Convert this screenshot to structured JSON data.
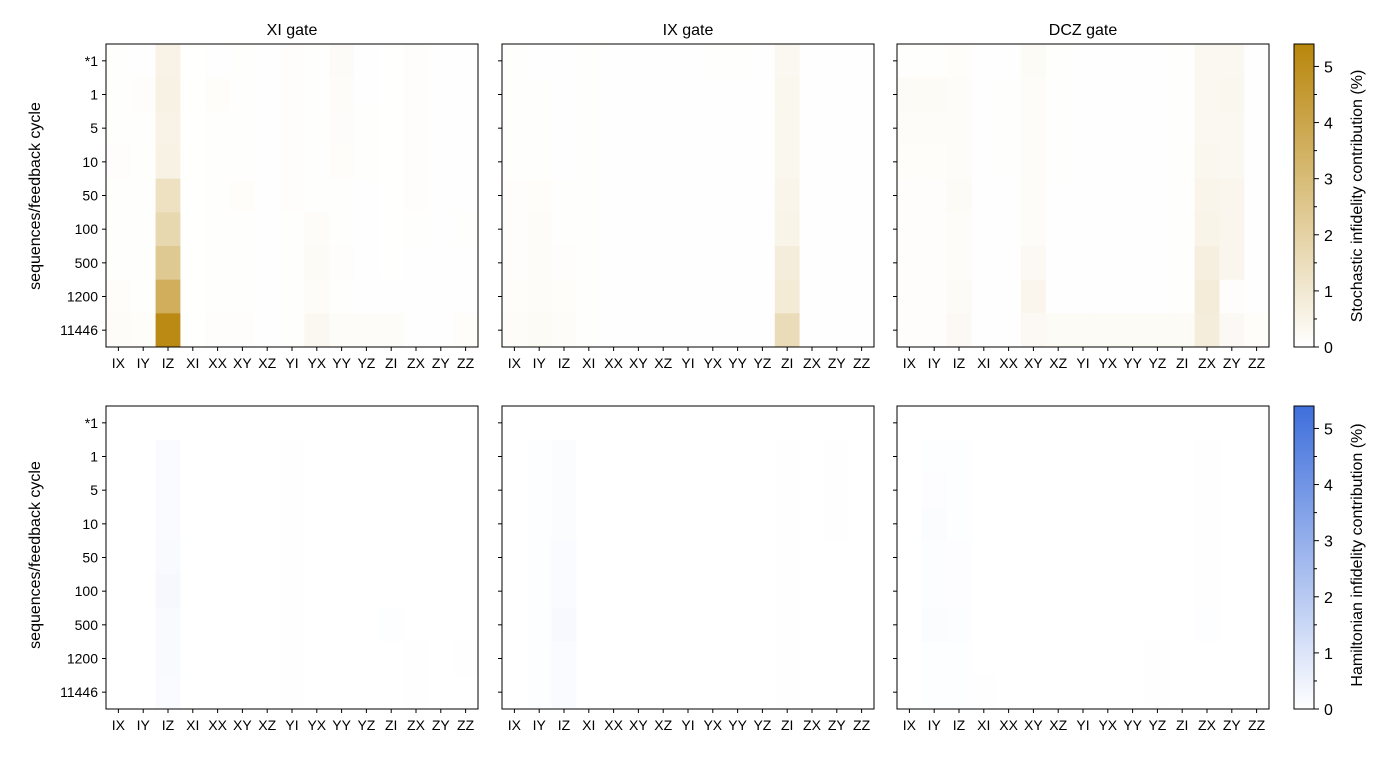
{
  "figure": {
    "ylabel": "sequences/feedback cycle",
    "cbar_top_label": "Stochastic infidelity contribution (%)",
    "cbar_bottom_label": "Hamiltonian infidelity contribution (%)",
    "cbar_ticks": [
      "0",
      "1",
      "2",
      "3",
      "4",
      "5"
    ],
    "colors": {
      "stochastic_max": "#b8860b",
      "hamiltonian_max": "#3f6fdc",
      "background": "#ffffff"
    }
  },
  "chart_data": {
    "type": "heatmap",
    "rows": [
      "*1",
      "1",
      "5",
      "10",
      "50",
      "100",
      "500",
      "1200",
      "11446"
    ],
    "columns": [
      "IX",
      "IY",
      "IZ",
      "XI",
      "XX",
      "XY",
      "XZ",
      "YI",
      "YX",
      "YY",
      "YZ",
      "ZI",
      "ZX",
      "ZY",
      "ZZ"
    ],
    "color_range": [
      0,
      5.4
    ],
    "panels": [
      {
        "title": "XI gate",
        "kind": "stochastic",
        "values": [
          [
            0.05,
            0.03,
            0.55,
            0.02,
            0.03,
            0.04,
            0.03,
            0.07,
            0.04,
            0.18,
            0.03,
            0.02,
            0.07,
            0.03,
            0.03
          ],
          [
            0.05,
            0.08,
            0.6,
            0.02,
            0.1,
            0.04,
            0.03,
            0.07,
            0.04,
            0.15,
            0.03,
            0.02,
            0.07,
            0.03,
            0.03
          ],
          [
            0.05,
            0.04,
            0.55,
            0.02,
            0.04,
            0.04,
            0.03,
            0.07,
            0.04,
            0.12,
            0.05,
            0.02,
            0.07,
            0.03,
            0.03
          ],
          [
            0.07,
            0.04,
            0.6,
            0.02,
            0.04,
            0.04,
            0.03,
            0.07,
            0.04,
            0.1,
            0.05,
            0.02,
            0.07,
            0.03,
            0.03
          ],
          [
            0.05,
            0.04,
            1.35,
            0.02,
            0.04,
            0.1,
            0.03,
            0.07,
            0.05,
            0.05,
            0.03,
            0.02,
            0.07,
            0.03,
            0.03
          ],
          [
            0.05,
            0.04,
            1.75,
            0.02,
            0.04,
            0.04,
            0.03,
            0.05,
            0.15,
            0.05,
            0.03,
            0.02,
            0.05,
            0.03,
            0.05
          ],
          [
            0.05,
            0.04,
            2.4,
            0.02,
            0.04,
            0.04,
            0.03,
            0.05,
            0.2,
            0.07,
            0.03,
            0.02,
            0.03,
            0.03,
            0.03
          ],
          [
            0.1,
            0.04,
            3.6,
            0.02,
            0.04,
            0.04,
            0.03,
            0.05,
            0.15,
            0.05,
            0.03,
            0.03,
            0.03,
            0.03,
            0.03
          ],
          [
            0.15,
            0.1,
            5.2,
            0.02,
            0.08,
            0.08,
            0.03,
            0.05,
            0.3,
            0.15,
            0.15,
            0.15,
            0.03,
            0.03,
            0.1
          ]
        ]
      },
      {
        "title": "IX gate",
        "kind": "stochastic",
        "values": [
          [
            0.04,
            0.03,
            0.03,
            0.05,
            0.03,
            0.03,
            0.03,
            0.03,
            0.05,
            0.04,
            0.03,
            0.3,
            0.03,
            0.03,
            0.03
          ],
          [
            0.04,
            0.04,
            0.03,
            0.04,
            0.03,
            0.03,
            0.03,
            0.03,
            0.03,
            0.03,
            0.03,
            0.35,
            0.03,
            0.03,
            0.03
          ],
          [
            0.04,
            0.04,
            0.03,
            0.04,
            0.03,
            0.03,
            0.03,
            0.03,
            0.03,
            0.03,
            0.03,
            0.35,
            0.03,
            0.03,
            0.03
          ],
          [
            0.04,
            0.04,
            0.03,
            0.04,
            0.03,
            0.03,
            0.03,
            0.03,
            0.03,
            0.03,
            0.03,
            0.35,
            0.03,
            0.03,
            0.03
          ],
          [
            0.08,
            0.1,
            0.04,
            0.04,
            0.03,
            0.03,
            0.03,
            0.03,
            0.03,
            0.03,
            0.03,
            0.45,
            0.03,
            0.03,
            0.03
          ],
          [
            0.08,
            0.15,
            0.04,
            0.04,
            0.03,
            0.03,
            0.03,
            0.03,
            0.03,
            0.03,
            0.03,
            0.5,
            0.03,
            0.03,
            0.03
          ],
          [
            0.08,
            0.15,
            0.08,
            0.04,
            0.03,
            0.03,
            0.03,
            0.03,
            0.03,
            0.03,
            0.03,
            0.8,
            0.03,
            0.03,
            0.03
          ],
          [
            0.1,
            0.15,
            0.1,
            0.04,
            0.03,
            0.03,
            0.03,
            0.03,
            0.03,
            0.03,
            0.03,
            0.9,
            0.03,
            0.03,
            0.03
          ],
          [
            0.15,
            0.2,
            0.15,
            0.04,
            0.03,
            0.03,
            0.03,
            0.03,
            0.03,
            0.03,
            0.03,
            1.55,
            0.03,
            0.03,
            0.03
          ]
        ]
      },
      {
        "title": "DCZ gate",
        "kind": "stochastic",
        "values": [
          [
            0.05,
            0.05,
            0.1,
            0.03,
            0.03,
            0.2,
            0.05,
            0.03,
            0.03,
            0.03,
            0.03,
            0.05,
            0.3,
            0.3,
            0.03
          ],
          [
            0.2,
            0.2,
            0.15,
            0.03,
            0.05,
            0.15,
            0.05,
            0.03,
            0.03,
            0.03,
            0.03,
            0.05,
            0.3,
            0.35,
            0.03
          ],
          [
            0.15,
            0.15,
            0.15,
            0.03,
            0.05,
            0.15,
            0.05,
            0.03,
            0.03,
            0.03,
            0.03,
            0.05,
            0.3,
            0.3,
            0.03
          ],
          [
            0.1,
            0.1,
            0.15,
            0.03,
            0.05,
            0.15,
            0.05,
            0.03,
            0.03,
            0.03,
            0.03,
            0.05,
            0.35,
            0.3,
            0.03
          ],
          [
            0.08,
            0.08,
            0.2,
            0.03,
            0.03,
            0.15,
            0.03,
            0.03,
            0.03,
            0.03,
            0.03,
            0.05,
            0.45,
            0.4,
            0.03
          ],
          [
            0.08,
            0.08,
            0.15,
            0.03,
            0.03,
            0.15,
            0.03,
            0.03,
            0.03,
            0.03,
            0.03,
            0.05,
            0.5,
            0.4,
            0.03
          ],
          [
            0.08,
            0.08,
            0.15,
            0.03,
            0.03,
            0.25,
            0.03,
            0.03,
            0.03,
            0.03,
            0.03,
            0.05,
            0.7,
            0.4,
            0.03
          ],
          [
            0.08,
            0.08,
            0.2,
            0.03,
            0.03,
            0.4,
            0.03,
            0.03,
            0.03,
            0.03,
            0.03,
            0.05,
            0.85,
            0.08,
            0.03
          ],
          [
            0.08,
            0.08,
            0.25,
            0.03,
            0.03,
            0.25,
            0.2,
            0.2,
            0.2,
            0.2,
            0.2,
            0.2,
            0.8,
            0.25,
            0.1
          ]
        ]
      },
      {
        "title": "",
        "kind": "hamiltonian",
        "values": [
          [
            0.0,
            0.0,
            0.0,
            0.0,
            0.0,
            0.0,
            0.0,
            0.0,
            0.0,
            0.0,
            0.0,
            0.0,
            0.0,
            0.0,
            0.0
          ],
          [
            0.0,
            0.0,
            0.15,
            0.0,
            0.0,
            0.0,
            0.0,
            0.03,
            0.0,
            0.0,
            0.0,
            0.0,
            0.0,
            0.0,
            0.0
          ],
          [
            0.0,
            0.0,
            0.15,
            0.0,
            0.0,
            0.0,
            0.0,
            0.03,
            0.0,
            0.0,
            0.0,
            0.0,
            0.0,
            0.0,
            0.0
          ],
          [
            0.0,
            0.0,
            0.15,
            0.0,
            0.0,
            0.0,
            0.0,
            0.02,
            0.0,
            0.0,
            0.0,
            0.0,
            0.0,
            0.0,
            0.0
          ],
          [
            0.0,
            0.0,
            0.2,
            0.0,
            0.0,
            0.0,
            0.0,
            0.02,
            0.0,
            0.0,
            0.0,
            0.0,
            0.0,
            0.0,
            0.0
          ],
          [
            0.0,
            0.0,
            0.25,
            0.0,
            0.0,
            0.0,
            0.0,
            0.04,
            0.0,
            0.0,
            0.0,
            0.0,
            0.0,
            0.0,
            0.0
          ],
          [
            0.0,
            0.0,
            0.2,
            0.0,
            0.0,
            0.0,
            0.0,
            0.02,
            0.0,
            0.0,
            0.0,
            0.05,
            0.0,
            0.0,
            0.0
          ],
          [
            0.0,
            0.0,
            0.18,
            0.0,
            0.0,
            0.0,
            0.0,
            0.02,
            0.0,
            0.0,
            0.0,
            0.0,
            0.03,
            0.0,
            0.02
          ],
          [
            0.0,
            0.0,
            0.15,
            0.0,
            0.0,
            0.0,
            0.0,
            0.02,
            0.0,
            0.0,
            0.0,
            0.0,
            0.03,
            0.0,
            0.0
          ]
        ]
      },
      {
        "title": "",
        "kind": "hamiltonian",
        "values": [
          [
            0.0,
            0.0,
            0.0,
            0.0,
            0.0,
            0.0,
            0.0,
            0.0,
            0.0,
            0.0,
            0.0,
            0.0,
            0.0,
            0.0,
            0.0
          ],
          [
            0.0,
            0.05,
            0.12,
            0.0,
            0.0,
            0.0,
            0.0,
            0.0,
            0.0,
            0.0,
            0.0,
            0.02,
            0.0,
            0.02,
            0.0
          ],
          [
            0.0,
            0.05,
            0.12,
            0.0,
            0.0,
            0.0,
            0.0,
            0.0,
            0.0,
            0.0,
            0.0,
            0.02,
            0.0,
            0.02,
            0.0
          ],
          [
            0.0,
            0.05,
            0.12,
            0.0,
            0.0,
            0.0,
            0.0,
            0.0,
            0.0,
            0.0,
            0.0,
            0.02,
            0.0,
            0.02,
            0.0
          ],
          [
            0.0,
            0.05,
            0.15,
            0.0,
            0.0,
            0.0,
            0.0,
            0.0,
            0.0,
            0.0,
            0.0,
            0.02,
            0.0,
            0.0,
            0.0
          ],
          [
            0.0,
            0.05,
            0.15,
            0.0,
            0.0,
            0.0,
            0.0,
            0.0,
            0.0,
            0.0,
            0.0,
            0.02,
            0.0,
            0.0,
            0.0
          ],
          [
            0.0,
            0.05,
            0.22,
            0.0,
            0.0,
            0.0,
            0.0,
            0.0,
            0.0,
            0.0,
            0.0,
            0.02,
            0.0,
            0.0,
            0.0
          ],
          [
            0.0,
            0.05,
            0.15,
            0.0,
            0.0,
            0.0,
            0.0,
            0.0,
            0.0,
            0.0,
            0.0,
            0.02,
            0.0,
            0.0,
            0.0
          ],
          [
            0.0,
            0.05,
            0.15,
            0.0,
            0.0,
            0.0,
            0.0,
            0.0,
            0.0,
            0.0,
            0.0,
            0.02,
            0.0,
            0.0,
            0.0
          ]
        ]
      },
      {
        "title": "",
        "kind": "hamiltonian",
        "values": [
          [
            0.0,
            0.0,
            0.0,
            0.0,
            0.0,
            0.0,
            0.0,
            0.0,
            0.0,
            0.0,
            0.0,
            0.0,
            0.0,
            0.0,
            0.0
          ],
          [
            0.0,
            0.05,
            0.05,
            0.0,
            0.0,
            0.0,
            0.0,
            0.0,
            0.0,
            0.0,
            0.0,
            0.0,
            0.03,
            0.0,
            0.0
          ],
          [
            0.0,
            0.06,
            0.05,
            0.0,
            0.0,
            0.0,
            0.0,
            0.0,
            0.0,
            0.0,
            0.0,
            0.0,
            0.03,
            0.0,
            0.0
          ],
          [
            0.0,
            0.1,
            0.05,
            0.0,
            0.0,
            0.0,
            0.0,
            0.0,
            0.0,
            0.0,
            0.0,
            0.0,
            0.03,
            0.0,
            0.0
          ],
          [
            0.0,
            0.08,
            0.06,
            0.0,
            0.0,
            0.0,
            0.0,
            0.0,
            0.0,
            0.0,
            0.0,
            0.0,
            0.02,
            0.0,
            0.0
          ],
          [
            0.0,
            0.08,
            0.06,
            0.0,
            0.0,
            0.0,
            0.0,
            0.0,
            0.0,
            0.0,
            0.0,
            0.0,
            0.04,
            0.0,
            0.0
          ],
          [
            0.0,
            0.1,
            0.08,
            0.0,
            0.0,
            0.0,
            0.0,
            0.0,
            0.0,
            0.0,
            0.0,
            0.0,
            0.05,
            0.0,
            0.0
          ],
          [
            0.0,
            0.05,
            0.05,
            0.0,
            0.0,
            0.0,
            0.0,
            0.0,
            0.0,
            0.0,
            0.02,
            0.0,
            0.0,
            0.0,
            0.0
          ],
          [
            0.0,
            0.05,
            0.05,
            0.04,
            0.0,
            0.0,
            0.0,
            0.0,
            0.0,
            0.0,
            0.02,
            0.0,
            0.0,
            0.0,
            0.0
          ]
        ]
      }
    ]
  }
}
